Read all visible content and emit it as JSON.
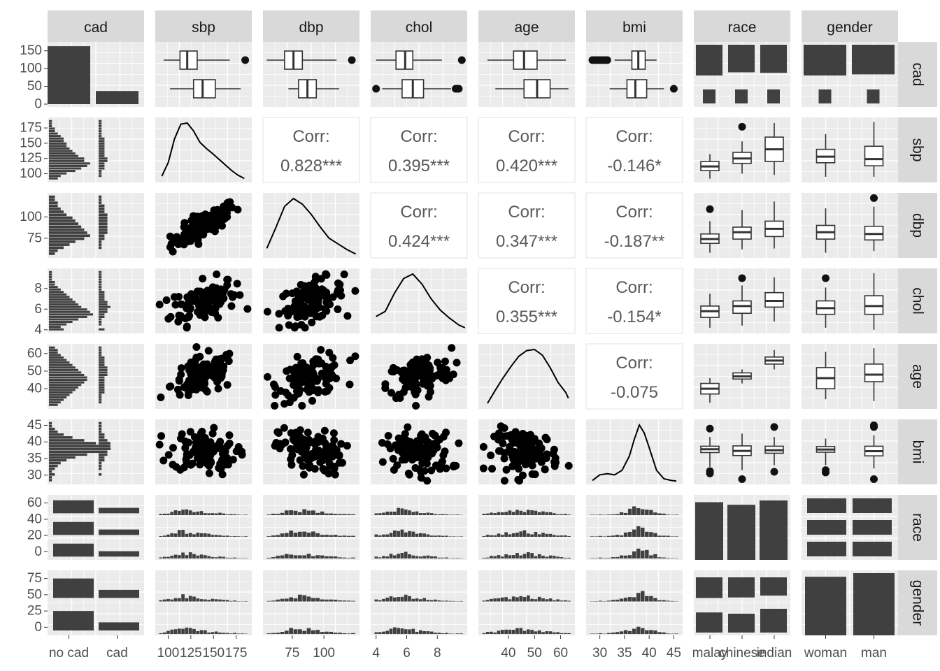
{
  "figure": {
    "variables": [
      "cad",
      "sbp",
      "dbp",
      "chol",
      "age",
      "bmi",
      "race",
      "gender"
    ],
    "column_labels": [
      "cad",
      "sbp",
      "dbp",
      "chol",
      "age",
      "bmi",
      "race",
      "gender"
    ],
    "row_labels": [
      "cad",
      "sbp",
      "dbp",
      "chol",
      "age",
      "bmi",
      "race",
      "gender"
    ],
    "colors": {
      "panel_bg": "#EBEBEB",
      "strip_bg": "#D9D9D9",
      "grid": "#FFFFFF",
      "fill": "#404040",
      "box_fill": "#FFFFFF",
      "text": "#4D4D4D"
    }
  },
  "chart_data": {
    "type": "scatterplot_matrix",
    "x_ticks": {
      "cad": [
        "no cad",
        "cad"
      ],
      "sbp": [
        "100",
        "125",
        "150",
        "175"
      ],
      "dbp": [
        "75",
        "100"
      ],
      "chol": [
        "4",
        "6",
        "8"
      ],
      "age": [
        "40",
        "50",
        "60"
      ],
      "bmi": [
        "30",
        "35",
        "40",
        "45"
      ],
      "race": [
        "malay",
        "chinese",
        "indian"
      ],
      "gender": [
        "woman",
        "man"
      ]
    },
    "y_ticks": {
      "cad": [
        "150",
        "100",
        "50",
        "0"
      ],
      "sbp": [
        "175",
        "150",
        "125",
        "100"
      ],
      "dbp": [
        "100",
        "75"
      ],
      "chol": [
        "8",
        "6",
        "4"
      ],
      "age": [
        "60",
        "50",
        "40"
      ],
      "bmi": [
        "45",
        "40",
        "35",
        "30"
      ],
      "race": [
        "60",
        "40",
        "20",
        "0"
      ],
      "gender": [
        "75",
        "50",
        "25",
        "0"
      ]
    },
    "cad_counts": {
      "categories": [
        "no cad",
        "cad"
      ],
      "values": [
        163,
        37
      ]
    },
    "correlations": [
      {
        "row": "sbp",
        "col": "dbp",
        "label": "Corr:",
        "value": "0.828***"
      },
      {
        "row": "sbp",
        "col": "chol",
        "label": "Corr:",
        "value": "0.395***"
      },
      {
        "row": "sbp",
        "col": "age",
        "label": "Corr:",
        "value": "0.420***"
      },
      {
        "row": "sbp",
        "col": "bmi",
        "label": "Corr:",
        "value": "-0.146*"
      },
      {
        "row": "dbp",
        "col": "chol",
        "label": "Corr:",
        "value": "0.424***"
      },
      {
        "row": "dbp",
        "col": "age",
        "label": "Corr:",
        "value": "0.347***"
      },
      {
        "row": "dbp",
        "col": "bmi",
        "label": "Corr:",
        "value": "-0.187**"
      },
      {
        "row": "chol",
        "col": "age",
        "label": "Corr:",
        "value": "0.355***"
      },
      {
        "row": "chol",
        "col": "bmi",
        "label": "Corr:",
        "value": "-0.154*"
      },
      {
        "row": "age",
        "col": "bmi",
        "label": "Corr:",
        "value": "-0.075"
      }
    ],
    "boxplots_by_cad": {
      "sbp": [
        {
          "group": "no cad",
          "stats": [
            95,
            113,
            121,
            132,
            168
          ],
          "outliers": [
            185
          ]
        },
        {
          "group": "cad",
          "stats": [
            102,
            128,
            138,
            152,
            180
          ],
          "outliers": []
        }
      ],
      "dbp": [
        {
          "group": "no cad",
          "stats": [
            55,
            69,
            76,
            83,
            110
          ],
          "outliers": [
            122
          ]
        },
        {
          "group": "cad",
          "stats": [
            72,
            80,
            87,
            94,
            112
          ],
          "outliers": []
        }
      ],
      "chol": [
        {
          "group": "no cad",
          "stats": [
            4.0,
            5.3,
            5.9,
            6.4,
            8.3
          ],
          "outliers": [
            9.6
          ]
        },
        {
          "group": "cad",
          "stats": [
            4.4,
            5.7,
            6.4,
            7.1,
            8.9
          ],
          "outliers": [
            4.0,
            9.2,
            9.3,
            9.4
          ]
        }
      ],
      "age": [
        {
          "group": "no cad",
          "stats": [
            32,
            42,
            46,
            51,
            62
          ],
          "outliers": []
        },
        {
          "group": "cad",
          "stats": [
            35,
            46,
            51,
            56,
            63
          ],
          "outliers": []
        }
      ],
      "bmi": [
        {
          "group": "no cad",
          "stats": [
            33,
            36.5,
            37.8,
            39.2,
            41.5
          ],
          "outliers": [
            28.5,
            29,
            29.5,
            30,
            30.5,
            31,
            31.5
          ]
        },
        {
          "group": "cad",
          "stats": [
            32,
            35.5,
            37.2,
            39.5,
            43
          ],
          "outliers": [
            45
          ]
        }
      ]
    },
    "boxplots_by_race": {
      "sbp": [
        {
          "group": "malay",
          "stats": [
            92,
            105,
            112,
            120,
            132
          ],
          "outliers": []
        },
        {
          "group": "chinese",
          "stats": [
            100,
            117,
            125,
            135,
            153
          ],
          "outliers": [
            177
          ]
        },
        {
          "group": "indian",
          "stats": [
            98,
            120,
            140,
            160,
            183
          ],
          "outliers": []
        }
      ],
      "dbp": [
        {
          "group": "malay",
          "stats": [
            58,
            69,
            74,
            80,
            95
          ],
          "outliers": [
            109
          ]
        },
        {
          "group": "chinese",
          "stats": [
            62,
            74,
            82,
            88,
            108
          ],
          "outliers": []
        },
        {
          "group": "indian",
          "stats": [
            63,
            77,
            86,
            95,
            118
          ],
          "outliers": []
        }
      ],
      "chol": [
        {
          "group": "malay",
          "stats": [
            4.2,
            5.2,
            5.8,
            6.3,
            7.5
          ],
          "outliers": []
        },
        {
          "group": "chinese",
          "stats": [
            4.4,
            5.6,
            6.3,
            6.8,
            8.3
          ],
          "outliers": [
            9.0
          ]
        },
        {
          "group": "indian",
          "stats": [
            4.8,
            6.2,
            6.8,
            7.6,
            9.1
          ],
          "outliers": []
        }
      ],
      "age": [
        {
          "group": "malay",
          "stats": [
            32,
            37,
            40,
            43,
            46
          ],
          "outliers": []
        },
        {
          "group": "chinese",
          "stats": [
            43,
            45.5,
            47,
            49,
            51
          ],
          "outliers": []
        },
        {
          "group": "indian",
          "stats": [
            51,
            54,
            56,
            58,
            62
          ],
          "outliers": []
        }
      ],
      "bmi": [
        {
          "group": "malay",
          "stats": [
            32.5,
            36.8,
            37.8,
            38.7,
            41.5
          ],
          "outliers": [
            30.5,
            31.2,
            44
          ]
        },
        {
          "group": "chinese",
          "stats": [
            31.5,
            35.9,
            37.3,
            38.8,
            42.5
          ],
          "outliers": [
            28.8
          ]
        },
        {
          "group": "indian",
          "stats": [
            33,
            36.6,
            37.5,
            38.7,
            41.5
          ],
          "outliers": [
            31,
            44.5
          ]
        }
      ]
    },
    "boxplots_by_gender": {
      "sbp": [
        {
          "group": "woman",
          "stats": [
            95,
            118,
            128,
            140,
            165
          ],
          "outliers": []
        },
        {
          "group": "man",
          "stats": [
            95,
            113,
            124,
            145,
            185
          ],
          "outliers": []
        }
      ],
      "dbp": [
        {
          "group": "woman",
          "stats": [
            58,
            74,
            82,
            90,
            110
          ],
          "outliers": []
        },
        {
          "group": "man",
          "stats": [
            60,
            73,
            80,
            89,
            112
          ],
          "outliers": [
            122
          ]
        }
      ],
      "chol": [
        {
          "group": "woman",
          "stats": [
            4.2,
            5.5,
            6.1,
            6.8,
            8.1
          ],
          "outliers": [
            9.0
          ]
        },
        {
          "group": "man",
          "stats": [
            4.0,
            5.5,
            6.3,
            7.3,
            9.5
          ],
          "outliers": []
        }
      ],
      "age": [
        {
          "group": "woman",
          "stats": [
            34,
            40,
            46,
            52,
            61
          ],
          "outliers": []
        },
        {
          "group": "man",
          "stats": [
            33,
            44,
            48,
            54,
            63
          ],
          "outliers": []
        }
      ],
      "bmi": [
        {
          "group": "woman",
          "stats": [
            33,
            36.9,
            37.7,
            38.6,
            41
          ],
          "outliers": [
            30.8,
            31.5
          ]
        },
        {
          "group": "man",
          "stats": [
            32,
            35.8,
            37.2,
            38.7,
            42
          ],
          "outliers": [
            28.8,
            44.5,
            45
          ]
        }
      ]
    },
    "race_by_cad_counts": {
      "malay": [
        58,
        9
      ],
      "chinese": [
        52,
        12
      ],
      "indian": [
        53,
        16
      ]
    },
    "gender_by_cad_counts": {
      "woman": [
        83,
        14
      ],
      "man": [
        80,
        23
      ]
    },
    "race_counts": {
      "malay": 67,
      "chinese": 64,
      "indian": 69
    },
    "gender_counts": {
      "woman": 97,
      "man": 103
    },
    "race_gender_counts": {
      "malay": [
        34,
        33
      ],
      "chinese": [
        33,
        31
      ],
      "indian": [
        30,
        39
      ]
    },
    "histograms_by_cad": {
      "sbp": {
        "no cad": [
          3,
          4,
          6,
          9,
          11,
          13,
          14,
          12,
          12,
          10,
          9,
          8,
          7,
          6,
          6,
          5,
          5,
          4,
          3,
          2,
          2,
          1,
          1,
          1
        ],
        "cad": [
          0,
          1,
          1,
          1,
          2,
          2,
          2,
          3,
          3,
          2,
          2,
          2,
          2,
          2,
          2,
          2,
          2,
          1,
          1,
          1,
          1,
          1,
          1,
          1
        ]
      },
      "dbp": {
        "no cad": [
          2,
          3,
          5,
          7,
          9,
          12,
          14,
          13,
          12,
          11,
          10,
          9,
          8,
          6,
          5,
          4,
          3,
          3,
          2,
          2
        ],
        "cad": [
          0,
          0,
          1,
          1,
          1,
          2,
          2,
          3,
          3,
          3,
          3,
          3,
          3,
          3,
          2,
          2,
          2,
          1,
          1,
          1
        ]
      },
      "chol": {
        "no cad": [
          5,
          4,
          6,
          8,
          10,
          13,
          15,
          14,
          13,
          11,
          10,
          9,
          8,
          7,
          6,
          5,
          4,
          3,
          2,
          2,
          1,
          1,
          1,
          1
        ],
        "cad": [
          2,
          0,
          1,
          1,
          1,
          2,
          2,
          3,
          3,
          4,
          3,
          3,
          2,
          2,
          2,
          2,
          1,
          1,
          1,
          1,
          1,
          1,
          1,
          1
        ]
      },
      "age": {
        "no cad": [
          3,
          4,
          5,
          6,
          7,
          8,
          9,
          10,
          11,
          12,
          13,
          13,
          12,
          11,
          10,
          9,
          8,
          7,
          6,
          5,
          4,
          3,
          3,
          2
        ],
        "cad": [
          0,
          1,
          1,
          1,
          1,
          2,
          2,
          2,
          2,
          2,
          2,
          2,
          3,
          3,
          3,
          3,
          2,
          2,
          2,
          2,
          1,
          1,
          1,
          1
        ]
      },
      "bmi": {
        "no cad": [
          1,
          1,
          2,
          1,
          2,
          3,
          4,
          6,
          9,
          13,
          17,
          21,
          20,
          16,
          12,
          8,
          5,
          3,
          2,
          1,
          1
        ],
        "cad": [
          0,
          0,
          1,
          0,
          1,
          1,
          1,
          2,
          2,
          3,
          3,
          4,
          4,
          4,
          3,
          2,
          2,
          1,
          1,
          1,
          1
        ]
      }
    },
    "densities": {
      "sbp": {
        "x": [
          93,
          100,
          107,
          114,
          121,
          128,
          135,
          142,
          149,
          156,
          163,
          170,
          177,
          184
        ],
        "y": [
          0.06,
          0.3,
          0.72,
          0.98,
          1.0,
          0.86,
          0.66,
          0.55,
          0.46,
          0.36,
          0.26,
          0.16,
          0.08,
          0.02
        ]
      },
      "dbp": {
        "x": [
          55,
          62,
          69,
          76,
          83,
          90,
          97,
          104,
          111,
          118,
          125
        ],
        "y": [
          0.12,
          0.48,
          0.86,
          1.0,
          0.9,
          0.72,
          0.5,
          0.3,
          0.2,
          0.1,
          0.02
        ]
      },
      "chol": {
        "x": [
          4.0,
          4.6,
          5.2,
          5.8,
          6.4,
          7.0,
          7.6,
          8.2,
          8.8,
          9.4,
          9.8
        ],
        "y": [
          0.25,
          0.34,
          0.66,
          0.92,
          1.0,
          0.82,
          0.56,
          0.36,
          0.22,
          0.1,
          0.05
        ]
      },
      "age": {
        "x": [
          32,
          35,
          38,
          41,
          44,
          47,
          50,
          53,
          56,
          59,
          62,
          63
        ],
        "y": [
          0.05,
          0.28,
          0.5,
          0.7,
          0.88,
          0.98,
          1.0,
          0.9,
          0.68,
          0.42,
          0.24,
          0.14
        ]
      },
      "bmi": {
        "x": [
          28.5,
          30,
          31.5,
          33,
          34.5,
          36,
          37,
          38,
          39,
          40,
          41.5,
          43,
          44.5,
          45.5
        ],
        "y": [
          0.02,
          0.12,
          0.14,
          0.12,
          0.2,
          0.45,
          0.75,
          1.0,
          0.86,
          0.6,
          0.2,
          0.05,
          0.02,
          0.01
        ]
      }
    },
    "variable_ranges": {
      "sbp": [
        90,
        188
      ],
      "dbp": [
        55,
        125
      ],
      "chol": [
        3.9,
        9.7
      ],
      "age": [
        30,
        64
      ],
      "bmi": [
        28,
        46
      ]
    }
  }
}
